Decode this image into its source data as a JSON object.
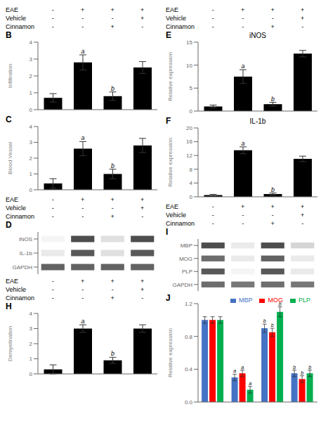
{
  "chart_data": [
    {
      "type": "bar",
      "title": "B",
      "categories": [
        null,
        null,
        null,
        null
      ],
      "values": [
        0.7,
        2.8,
        0.8,
        2.5
      ],
      "errors": [
        0.25,
        0.45,
        0.25,
        0.35
      ],
      "annotations": [
        null,
        "a",
        "b",
        null
      ],
      "color": "#000000",
      "ylabel": "Infiltration",
      "ylim": [
        0,
        4
      ],
      "yticks": [
        0,
        1,
        2,
        3,
        4
      ],
      "grid": false,
      "conditions": {
        "names": [
          "EAE",
          "Vehicle",
          "Cinnamon"
        ],
        "signs": [
          [
            "-",
            "+",
            "+",
            "+"
          ],
          [
            "-",
            "-",
            "-",
            "+"
          ],
          [
            "-",
            "-",
            "+",
            "-"
          ]
        ]
      }
    },
    {
      "type": "bar",
      "title": "C",
      "categories": [
        null,
        null,
        null,
        null
      ],
      "values": [
        0.4,
        2.6,
        1.0,
        2.8
      ],
      "errors": [
        0.3,
        0.45,
        0.3,
        0.45
      ],
      "annotations": [
        null,
        "a",
        "b",
        null
      ],
      "color": "#000000",
      "ylabel": "Blood Vessel",
      "ylim": [
        0,
        4
      ],
      "yticks": [
        0,
        1,
        2,
        3,
        4
      ],
      "grid": false
    },
    {
      "type": "heatmap",
      "title": "D",
      "categories": [
        null,
        null,
        null,
        null
      ],
      "y_categories": [
        "iNOS",
        "IL-1b",
        "GAPDH"
      ],
      "cells": [
        [
          0.05,
          0.85,
          0.15,
          0.85
        ],
        [
          0.1,
          0.8,
          0.15,
          0.8
        ],
        [
          0.75,
          0.75,
          0.75,
          0.75
        ]
      ],
      "tick_labels": "y",
      "conditions": {
        "names": [
          "EAE",
          "Vehicle",
          "Cinnamon"
        ],
        "signs": [
          [
            "-",
            "+",
            "+",
            "+"
          ],
          [
            "-",
            "-",
            "-",
            "+"
          ],
          [
            "-",
            "-",
            "+",
            "-"
          ]
        ]
      }
    },
    {
      "type": "bar",
      "title": "E",
      "subtitle": "iNOS",
      "categories": [
        null,
        null,
        null,
        null
      ],
      "values": [
        1.0,
        7.5,
        1.5,
        12.5
      ],
      "errors": [
        0.3,
        1.5,
        0.4,
        0.7
      ],
      "annotations": [
        null,
        "a",
        "b",
        null
      ],
      "color": "#000000",
      "ylabel": "Relative expression",
      "ylim": [
        0,
        15
      ],
      "yticks": [
        0,
        5,
        10,
        15
      ],
      "grid": false,
      "conditions": {
        "names": [
          "EAE",
          "Vehicle",
          "Cinnamon"
        ],
        "signs": [
          [
            "-",
            "+",
            "+",
            "+"
          ],
          [
            "-",
            "-",
            "-",
            "+"
          ],
          [
            "-",
            "-",
            "+",
            "-"
          ]
        ]
      }
    },
    {
      "type": "bar",
      "title": "F",
      "subtitle": "IL-1b",
      "categories": [
        null,
        null,
        null,
        null
      ],
      "values": [
        0.5,
        13.5,
        0.8,
        11.0
      ],
      "errors": [
        0.2,
        1.0,
        0.3,
        0.8
      ],
      "annotations": [
        null,
        "a",
        "b",
        null
      ],
      "color": "#000000",
      "ylabel": "Relative expression",
      "ylim": [
        0,
        20
      ],
      "yticks": [
        0,
        4,
        8,
        12,
        16,
        20
      ],
      "grid": false
    },
    {
      "type": "bar",
      "title": "H",
      "categories": [
        null,
        null,
        null,
        null
      ],
      "values": [
        0.3,
        3.0,
        0.9,
        3.0
      ],
      "errors": [
        0.3,
        0.25,
        0.2,
        0.25
      ],
      "annotations": [
        null,
        "a",
        "b",
        null
      ],
      "color": "#000000",
      "ylabel": "Demyelination",
      "ylim": [
        0,
        4
      ],
      "yticks": [
        0,
        1,
        2,
        3,
        4
      ],
      "grid": false,
      "conditions": {
        "names": [
          "EAE",
          "Vehicle",
          "Cinnamon"
        ],
        "signs": [
          [
            "-",
            "+",
            "+",
            "+"
          ],
          [
            "-",
            "-",
            "-",
            "+"
          ],
          [
            "-",
            "-",
            "+",
            "-"
          ]
        ]
      }
    },
    {
      "type": "heatmap",
      "title": "I",
      "categories": [
        null,
        null,
        null,
        null
      ],
      "y_categories": [
        "MBP",
        "MOG",
        "PLP",
        "GAPDH"
      ],
      "cells": [
        [
          0.85,
          0.1,
          0.85,
          0.2
        ],
        [
          0.7,
          0.1,
          0.75,
          0.1
        ],
        [
          0.8,
          0.05,
          0.8,
          0.1
        ],
        [
          0.7,
          0.65,
          0.7,
          0.65
        ]
      ],
      "tick_labels": "y",
      "conditions": {
        "names": [
          "EAE",
          "Vehicle",
          "Cinnamon"
        ],
        "signs": [
          [
            "-",
            "+",
            "+",
            "+"
          ],
          [
            "-",
            "-",
            "-",
            "+"
          ],
          [
            "-",
            "-",
            "+",
            "-"
          ]
        ]
      }
    },
    {
      "type": "bar",
      "title": "J",
      "categories": [
        null,
        null,
        null,
        null
      ],
      "series": [
        {
          "name": "MBP",
          "color": "#4472C4",
          "values": [
            1.0,
            0.3,
            0.9,
            0.35
          ],
          "errors": [
            0.04,
            0.04,
            0.05,
            0.04
          ],
          "annotations": [
            null,
            "a",
            "b",
            "b"
          ]
        },
        {
          "name": "MOG",
          "color": "#FF0000",
          "values": [
            1.0,
            0.35,
            0.85,
            0.28
          ],
          "errors": [
            0.04,
            0.04,
            0.05,
            0.04
          ],
          "annotations": [
            null,
            "a",
            "b",
            "b"
          ]
        },
        {
          "name": "PLP",
          "color": "#00B050",
          "values": [
            1.0,
            0.15,
            1.1,
            0.35
          ],
          "errors": [
            0.04,
            0.04,
            0.06,
            0.04
          ],
          "annotations": [
            null,
            "a",
            "b",
            "b"
          ]
        }
      ],
      "ylabel": "Relative expression",
      "ylim": [
        0,
        1.2
      ],
      "yticks": [
        {
          "value": 0,
          "label": "0.0"
        },
        0.4,
        0.8,
        1.2
      ],
      "grid": false,
      "legend": "upper right"
    }
  ]
}
